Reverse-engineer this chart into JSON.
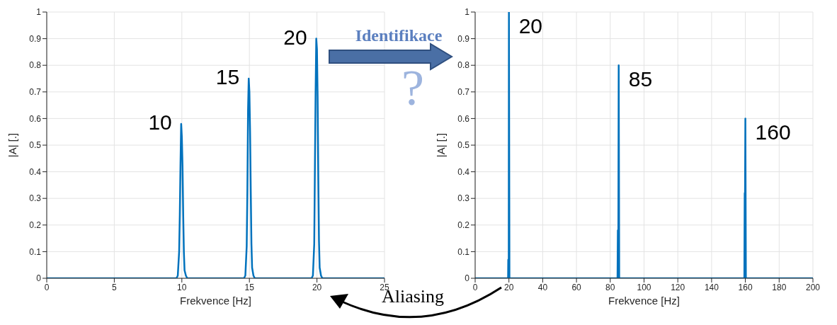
{
  "chart_data": [
    {
      "type": "line",
      "xlabel": "Frekvence [Hz]",
      "ylabel": "|A| [.]",
      "color": "#0072bd",
      "grid": true,
      "x": [
        0,
        9.6,
        9.7,
        9.8,
        9.85,
        9.9,
        9.95,
        10,
        10.05,
        10.1,
        10.15,
        10.2,
        10.3,
        10.4,
        14.6,
        14.7,
        14.8,
        14.85,
        14.9,
        14.95,
        15,
        15.05,
        15.1,
        15.15,
        15.2,
        15.3,
        15.4,
        19.6,
        19.7,
        19.8,
        19.85,
        19.9,
        19.95,
        20,
        20.05,
        20.1,
        20.15,
        20.2,
        20.3,
        20.4,
        25
      ],
      "values": [
        0,
        0,
        0.01,
        0.1,
        0.24,
        0.43,
        0.58,
        0.53,
        0.42,
        0.24,
        0.1,
        0.03,
        0.01,
        0,
        0,
        0.01,
        0.12,
        0.33,
        0.63,
        0.75,
        0.7,
        0.55,
        0.33,
        0.13,
        0.04,
        0.01,
        0,
        0,
        0.01,
        0.13,
        0.42,
        0.7,
        0.9,
        0.86,
        0.68,
        0.38,
        0.14,
        0.04,
        0.01,
        0,
        0
      ],
      "xlim": [
        0,
        25
      ],
      "xticks": [
        0,
        5,
        10,
        15,
        20,
        25
      ],
      "ylim": [
        0,
        1
      ],
      "yticks": [
        0,
        0.1,
        0.2,
        0.3,
        0.4,
        0.5,
        0.6,
        0.7,
        0.8,
        0.9,
        1
      ],
      "annotations": [
        {
          "text": "10",
          "x": 10,
          "y": 0.58
        },
        {
          "text": "15",
          "x": 15,
          "y": 0.75
        },
        {
          "text": "20",
          "x": 20,
          "y": 0.9
        },
        "Identifikace",
        "?",
        "Aliasing"
      ]
    },
    {
      "type": "line",
      "xlabel": "Frekvence [Hz]",
      "ylabel": "|A| [.]",
      "color": "#0072bd",
      "grid": true,
      "x": [
        0,
        19.5,
        19.6,
        19.9,
        20,
        20.3,
        84.3,
        84.5,
        84.8,
        85,
        85.3,
        159.4,
        159.6,
        159.8,
        160,
        160.3,
        200
      ],
      "values": [
        0,
        0,
        0.07,
        0.07,
        1,
        0,
        0,
        0.18,
        0.18,
        0.8,
        0,
        0,
        0.32,
        0.32,
        0.6,
        0,
        0
      ],
      "xlim": [
        0,
        200
      ],
      "xticks": [
        0,
        20,
        40,
        60,
        80,
        100,
        120,
        140,
        160,
        180,
        200
      ],
      "ylim": [
        0,
        1
      ],
      "yticks": [
        0,
        0.1,
        0.2,
        0.3,
        0.4,
        0.5,
        0.6,
        0.7,
        0.8,
        0.9,
        1
      ],
      "annotations": [
        {
          "text": "20",
          "x": 20,
          "y": 1
        },
        {
          "text": "85",
          "x": 85,
          "y": 0.8
        },
        {
          "text": "160",
          "x": 160,
          "y": 0.6
        }
      ]
    }
  ]
}
